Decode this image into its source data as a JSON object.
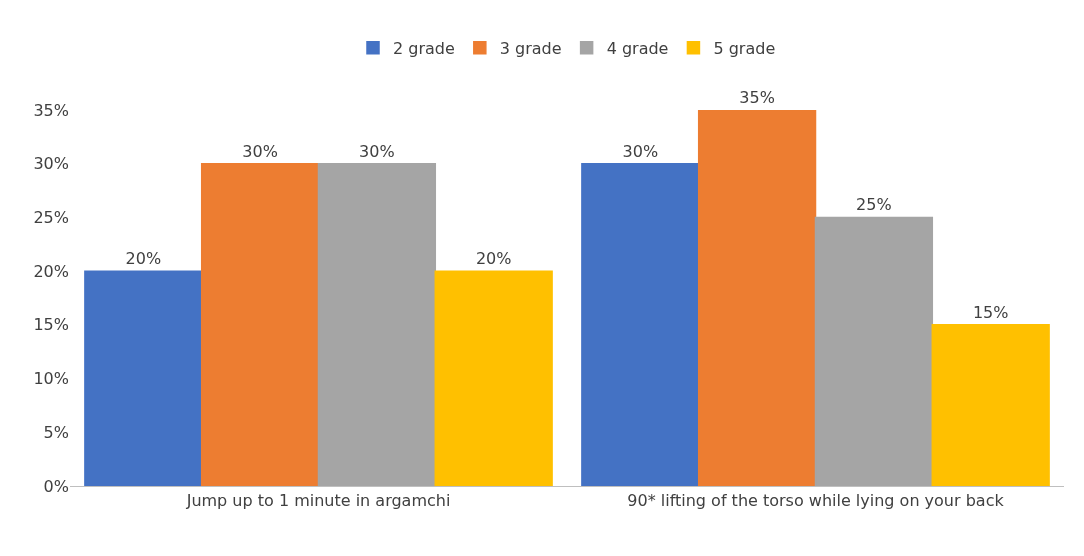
{
  "chart_data": {
    "type": "bar",
    "categories": [
      "Jump up to 1 minute in argamchi",
      "90* lifting of the torso while lying on your back"
    ],
    "series": [
      {
        "name": "2 grade",
        "color": "#4472c4",
        "values": [
          20,
          30
        ],
        "value_labels": [
          "20%",
          "30%"
        ]
      },
      {
        "name": "3 grade",
        "color": "#ed7d31",
        "values": [
          30,
          35
        ],
        "value_labels": [
          "30%",
          "35%"
        ]
      },
      {
        "name": "4 grade",
        "color": "#a5a5a5",
        "values": [
          30,
          25
        ],
        "value_labels": [
          "30%",
          "25%"
        ]
      },
      {
        "name": "5 grade",
        "color": "#ffc000",
        "values": [
          20,
          15
        ],
        "value_labels": [
          "20%",
          "15%"
        ]
      }
    ],
    "ylim": [
      0,
      35
    ],
    "yticks": [
      {
        "value": 0,
        "label": "0%"
      },
      {
        "value": 5,
        "label": "5%"
      },
      {
        "value": 10,
        "label": "10%"
      },
      {
        "value": 15,
        "label": "15%"
      },
      {
        "value": 20,
        "label": "20%"
      },
      {
        "value": 25,
        "label": "25%"
      },
      {
        "value": 30,
        "label": "30%"
      },
      {
        "value": 35,
        "label": "35%"
      }
    ],
    "legend": "top"
  }
}
